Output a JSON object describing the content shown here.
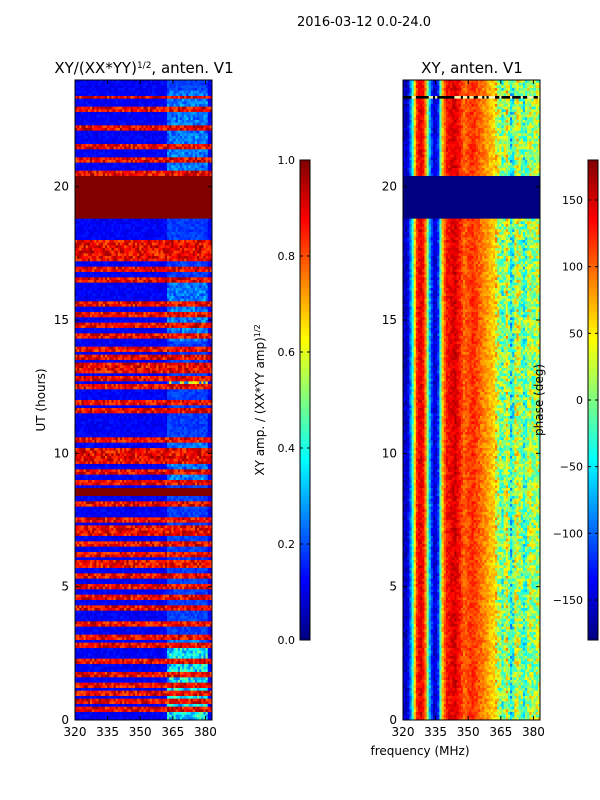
{
  "figure": {
    "suptitle": "2016-03-12 0.0-24.0",
    "shared_xlabel": "frequency (MHz)"
  },
  "chart_data": [
    {
      "type": "heatmap",
      "title": "XY/(XX*YY)¹ᐟ², anten. V1",
      "title_parts": {
        "main": "XY/(XX*YY)",
        "superscript": "1/2",
        "suffix": ", anten. V1"
      },
      "xlabel": "",
      "ylabel": "UT (hours)",
      "xlim": [
        320,
        383
      ],
      "ylim": [
        0,
        24
      ],
      "xticks": [
        320,
        335,
        350,
        365,
        380
      ],
      "yticks": [
        0,
        5,
        10,
        15,
        20
      ],
      "colormap": "jet",
      "colorbar": {
        "label": "XY amp. / (XX*YY amp)",
        "label_superscript": "1/2",
        "range": [
          0.0,
          1.0
        ],
        "ticks": [
          0.0,
          0.2,
          0.4,
          0.6,
          0.8,
          1.0
        ],
        "tick_labels": [
          "0.0",
          "0.2",
          "0.4",
          "0.6",
          "0.8",
          "1.0"
        ]
      },
      "background_value": 0.12,
      "flagged_time_ranges_hours": [
        [
          18.85,
          20.35
        ],
        [
          8.45,
          8.72
        ]
      ],
      "flagged_value": 1.0,
      "thin_flag_lines_hours": [
        23.35,
        22.9,
        22.2,
        21.5,
        21.0,
        20.5,
        17.9,
        17.7,
        17.5,
        17.3,
        16.9,
        16.5,
        15.6,
        15.2,
        14.8,
        14.4,
        13.9,
        13.6,
        13.3,
        13.1,
        12.8,
        12.5,
        11.9,
        11.6,
        10.5,
        10.1,
        9.9,
        9.7,
        9.3,
        8.9,
        8.1,
        7.5,
        7.2,
        7.0,
        6.6,
        6.2,
        5.9,
        5.8,
        5.4,
        5.0,
        4.6,
        4.2,
        3.6,
        3.1,
        2.8,
        2.2,
        1.7,
        1.3,
        1.0,
        0.7,
        0.4
      ],
      "hot_band_mhz": [
        362,
        381
      ],
      "hot_band_levels": [
        {
          "hours": [
            0.0,
            2.8
          ],
          "value": 0.42
        },
        {
          "hours": [
            12.4,
            12.65
          ],
          "value": 0.62
        }
      ],
      "band_activity_hours": [
        [
          0.0,
          3.0
        ],
        [
          8.8,
          10.5
        ],
        [
          14.2,
          16.6
        ],
        [
          20.5,
          23.6
        ]
      ]
    },
    {
      "type": "heatmap",
      "title": "XY, anten. V1",
      "xlabel": "frequency (MHz)",
      "ylabel": "",
      "xlim": [
        320,
        383
      ],
      "ylim": [
        0,
        24
      ],
      "xticks": [
        320,
        335,
        350,
        365,
        380
      ],
      "yticks": [
        0,
        5,
        10,
        15,
        20
      ],
      "colormap": "jet",
      "colorbar": {
        "label": "phase (deg)",
        "range": [
          -180,
          180
        ],
        "ticks": [
          -150,
          -100,
          -50,
          0,
          50,
          100,
          150
        ],
        "tick_labels": [
          "−150",
          "−100",
          "−50",
          "0",
          "50",
          "100",
          "150"
        ]
      },
      "flagged_time_ranges_hours": [
        [
          18.85,
          20.35
        ]
      ],
      "flagged_value": -180,
      "frequency_phase_profile_deg": [
        [
          320,
          -150
        ],
        [
          322,
          -160
        ],
        [
          324,
          -70
        ],
        [
          326,
          110
        ],
        [
          328,
          150
        ],
        [
          330,
          120
        ],
        [
          332,
          -60
        ],
        [
          334,
          -150
        ],
        [
          336,
          -140
        ],
        [
          338,
          60
        ],
        [
          340,
          130
        ],
        [
          342,
          140
        ],
        [
          344,
          150
        ],
        [
          346,
          130
        ],
        [
          348,
          100
        ],
        [
          350,
          110
        ],
        [
          352,
          120
        ],
        [
          354,
          110
        ],
        [
          356,
          95
        ],
        [
          358,
          85
        ],
        [
          360,
          70
        ],
        [
          362,
          60
        ],
        [
          364,
          20
        ],
        [
          366,
          -20
        ],
        [
          368,
          50
        ],
        [
          370,
          -60
        ],
        [
          372,
          40
        ],
        [
          374,
          10
        ],
        [
          376,
          -30
        ],
        [
          378,
          30
        ],
        [
          380,
          0
        ],
        [
          382,
          20
        ]
      ],
      "thin_flag_lines_hours": [
        23.35,
        22.9,
        22.2,
        21.9,
        21.5,
        21.0,
        20.5,
        18.6,
        18.0,
        17.7,
        17.4,
        17.0,
        16.9,
        16.5,
        15.7,
        15.2,
        14.8,
        14.4,
        14.0,
        13.6,
        13.3,
        12.9,
        12.5,
        12.1,
        11.9,
        11.4,
        11.1,
        10.8,
        10.5,
        10.1,
        9.7,
        9.3,
        8.9,
        8.6,
        8.2,
        7.8,
        7.3,
        7.1,
        6.6,
        6.2,
        5.8,
        5.4,
        5.0,
        4.6,
        4.0,
        3.7,
        3.4,
        2.9,
        2.7,
        2.3,
        1.9,
        1.6,
        1.2,
        0.9,
        0.6,
        0.2
      ]
    }
  ]
}
